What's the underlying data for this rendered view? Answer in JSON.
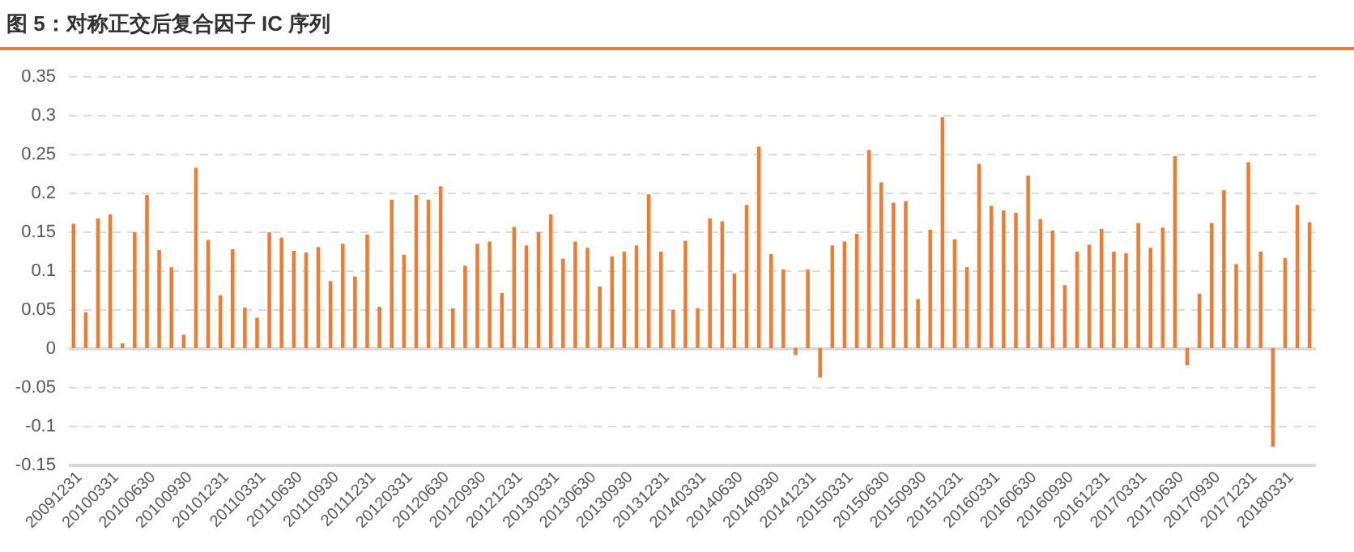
{
  "chart_data": {
    "type": "bar",
    "title": "图 5：对称正交后复合因子 IC 序列",
    "categories": [
      "20091231",
      null,
      null,
      "20100331",
      null,
      null,
      "20100630",
      null,
      null,
      "20100930",
      null,
      null,
      "20101231",
      null,
      null,
      "20110331",
      null,
      null,
      "20110630",
      null,
      null,
      "20110930",
      null,
      null,
      "20111231",
      null,
      null,
      "20120331",
      null,
      null,
      "20120630",
      null,
      null,
      "20120930",
      null,
      null,
      "20121231",
      null,
      null,
      "20130331",
      null,
      null,
      "20130630",
      null,
      null,
      "20130930",
      null,
      null,
      "20131231",
      null,
      null,
      "20140331",
      null,
      null,
      "20140630",
      null,
      null,
      "20140930",
      null,
      null,
      "20141231",
      null,
      null,
      "20150331",
      null,
      null,
      "20150630",
      null,
      null,
      "20150930",
      null,
      null,
      "20151231",
      null,
      null,
      "20160331",
      null,
      null,
      "20160630",
      null,
      null,
      "20160930",
      null,
      null,
      "20161231",
      null,
      null,
      "20170331",
      null,
      null,
      "20170630",
      null,
      null,
      "20170930",
      null,
      null,
      "20171231",
      null,
      null,
      "20180331",
      null,
      null
    ],
    "values": [
      0.16,
      0.046,
      0.167,
      0.172,
      0.006,
      0.149,
      0.197,
      0.126,
      0.104,
      0.017,
      0.232,
      0.139,
      0.068,
      0.127,
      0.052,
      0.039,
      0.149,
      0.142,
      0.125,
      0.123,
      0.13,
      0.086,
      0.134,
      0.092,
      0.146,
      0.053,
      0.191,
      0.12,
      0.197,
      0.191,
      0.208,
      0.051,
      0.106,
      0.134,
      0.137,
      0.071,
      0.156,
      0.132,
      0.149,
      0.172,
      0.115,
      0.137,
      0.129,
      0.079,
      0.118,
      0.124,
      0.132,
      0.198,
      0.124,
      0.049,
      0.138,
      0.051,
      0.167,
      0.163,
      0.096,
      0.184,
      0.259,
      0.121,
      0.101,
      -0.009,
      0.101,
      -0.038,
      0.132,
      0.137,
      0.147,
      0.255,
      0.213,
      0.187,
      0.189,
      0.063,
      0.152,
      0.297,
      0.14,
      0.104,
      0.237,
      0.183,
      0.177,
      0.174,
      0.222,
      0.166,
      0.151,
      0.081,
      0.124,
      0.133,
      0.153,
      0.124,
      0.122,
      0.161,
      0.129,
      0.155,
      0.247,
      -0.022,
      0.07,
      0.161,
      0.203,
      0.108,
      0.239,
      0.124,
      -0.127,
      0.116,
      0.184,
      0.162
    ],
    "color": "#ed7d31",
    "ylim": [
      -0.15,
      0.35
    ],
    "yticks": [
      -0.15,
      -0.1,
      -0.05,
      0,
      0.05,
      0.1,
      0.15,
      0.2,
      0.25,
      0.3,
      0.35
    ],
    "grid": "y"
  }
}
